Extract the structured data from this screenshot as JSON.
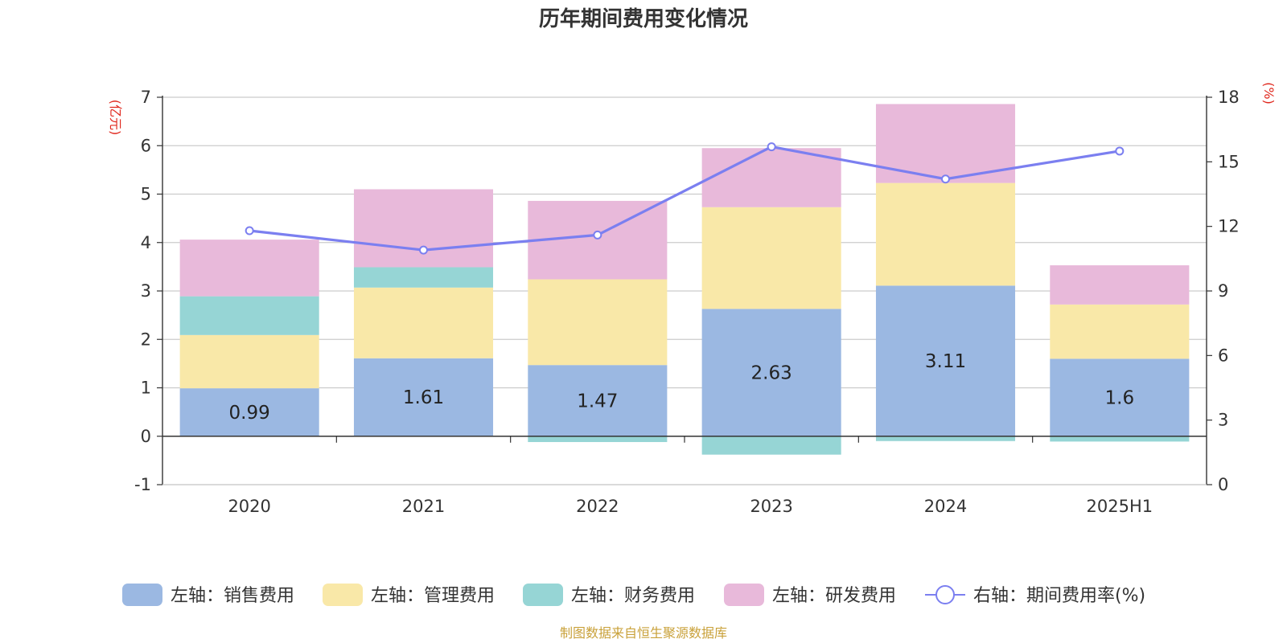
{
  "chart_data": {
    "type": "bar",
    "stacked": true,
    "title": "历年期间费用变化情况",
    "categories": [
      "2020",
      "2021",
      "2022",
      "2023",
      "2024",
      "2025H1"
    ],
    "y_left": {
      "unit": "(亿元)",
      "min": -1,
      "max": 7,
      "ticks": [
        "-1",
        "0",
        "1",
        "2",
        "3",
        "4",
        "5",
        "6",
        "7"
      ]
    },
    "y_right": {
      "unit": "(%)",
      "min": 0,
      "max": 18,
      "ticks": [
        "0",
        "3",
        "6",
        "9",
        "12",
        "15",
        "18"
      ]
    },
    "series": [
      {
        "name": "左轴：销售费用",
        "type": "bar",
        "color": "#9bb8e2",
        "values": [
          0.99,
          1.61,
          1.47,
          2.63,
          3.11,
          1.6
        ],
        "labels": [
          "0.99",
          "1.61",
          "1.47",
          "2.63",
          "3.11",
          "1.6"
        ]
      },
      {
        "name": "左轴：管理费用",
        "type": "bar",
        "color": "#f9e8a8",
        "values": [
          1.1,
          1.46,
          1.77,
          2.1,
          2.12,
          1.12
        ]
      },
      {
        "name": "左轴：财务费用",
        "type": "bar",
        "color": "#96d5d5",
        "values": [
          0.8,
          0.42,
          -0.12,
          -0.38,
          -0.1,
          -0.11
        ]
      },
      {
        "name": "左轴：研发费用",
        "type": "bar",
        "color": "#e8b9da",
        "values": [
          1.17,
          1.61,
          1.62,
          1.22,
          1.63,
          0.81
        ]
      },
      {
        "name": "右轴：期间费用率(%)",
        "type": "line",
        "axis": "right",
        "color": "#7b7ff0",
        "values": [
          11.8,
          10.9,
          11.6,
          15.7,
          14.2,
          15.5
        ]
      }
    ],
    "legend_position": "bottom",
    "grid": true
  },
  "footer": {
    "source": "制图数据来自恒生聚源数据库"
  }
}
